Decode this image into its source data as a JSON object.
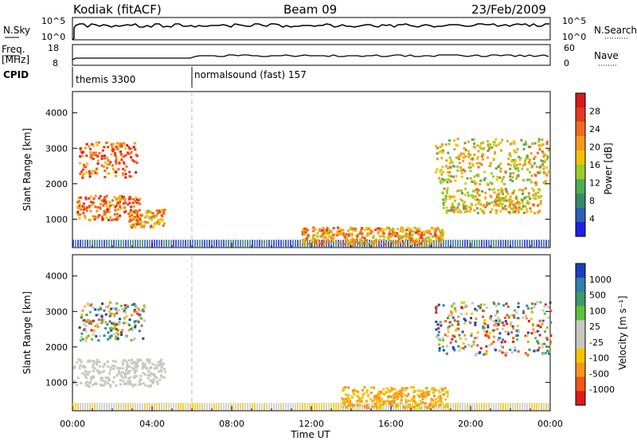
{
  "header": {
    "station": "Kodiak (fitACF)",
    "beam": "Beam 09",
    "date": "23/Feb/2009"
  },
  "top_panel": {
    "left_label": "N.Sky",
    "right_label": "N.Search",
    "left_ticks": [
      "10^5",
      "10^0"
    ],
    "right_ticks": [
      "10^5",
      "10^0"
    ]
  },
  "freq_panel": {
    "left_label_line1": "Freq.",
    "left_label_line2": "[MHz]",
    "right_label": "Nave",
    "left_ticks": [
      "18",
      "8"
    ],
    "right_ticks": [
      "60",
      "0"
    ]
  },
  "cpid_panel": {
    "label": "CPID",
    "modes": [
      {
        "name": "themis 3300",
        "start_hour": 0
      },
      {
        "name": "normalsound (fast) 157",
        "start_hour": 6
      }
    ]
  },
  "chart_data": [
    {
      "type": "heatmap",
      "panel": "power",
      "ylabel": "Slant Range [km]",
      "yticks": [
        1000,
        2000,
        3000,
        4000
      ],
      "ylim": [
        200,
        4600
      ],
      "xlim_hours": [
        0,
        24
      ],
      "colorbar": {
        "label": "Power [dB]",
        "ticks": [
          "4",
          "8",
          "12",
          "16",
          "20",
          "24",
          "28"
        ],
        "colors": [
          "#1f1fe8",
          "#2d5fb5",
          "#3a8a6a",
          "#4caf50",
          "#9ccc2a",
          "#f2c200",
          "#f59a1a",
          "#f06a1e",
          "#e8391e",
          "#d81a1a"
        ]
      },
      "regions": [
        {
          "hours": [
            0.3,
            3.2
          ],
          "range_km": [
            2200,
            3200
          ],
          "level": 0.75
        },
        {
          "hours": [
            0.2,
            3.4
          ],
          "range_km": [
            1000,
            1700
          ],
          "level": 0.8
        },
        {
          "hours": [
            2.8,
            4.6
          ],
          "range_km": [
            800,
            1300
          ],
          "level": 0.7
        },
        {
          "hours": [
            11.5,
            18.6
          ],
          "range_km": [
            300,
            800
          ],
          "level": 0.65
        },
        {
          "hours": [
            18.2,
            23.9
          ],
          "range_km": [
            2000,
            3300
          ],
          "level": 0.6
        },
        {
          "hours": [
            18.5,
            23.5
          ],
          "range_km": [
            1200,
            1900
          ],
          "level": 0.6
        }
      ]
    },
    {
      "type": "heatmap",
      "panel": "velocity",
      "ylabel": "Slant Range [km]",
      "yticks": [
        1000,
        2000,
        3000,
        4000
      ],
      "ylim": [
        200,
        4600
      ],
      "xlim_hours": [
        0,
        24
      ],
      "xticks": [
        "00:00",
        "04:00",
        "08:00",
        "12:00",
        "16:00",
        "20:00",
        "00:00"
      ],
      "xlabel": "Time UT",
      "colorbar": {
        "label": "Velocity [m s⁻¹]",
        "ticks": [
          "1000",
          "500",
          "100",
          "25",
          "-25",
          "-100",
          "-500",
          "-1000"
        ],
        "colors": [
          "#1a3fbf",
          "#2f7fb0",
          "#3a9a6a",
          "#5cc43a",
          "#c8c8c0",
          "#c8c8c0",
          "#f5c400",
          "#f5951a",
          "#f0551a",
          "#e01a1a"
        ]
      },
      "regions": [
        {
          "hours": [
            0.3,
            3.6
          ],
          "range_km": [
            2200,
            3300
          ],
          "level": "mixed"
        },
        {
          "hours": [
            0.0,
            4.6
          ],
          "range_km": [
            900,
            1700
          ],
          "level": "low"
        },
        {
          "hours": [
            13.5,
            18.8
          ],
          "range_km": [
            300,
            900
          ],
          "level": "negative"
        },
        {
          "hours": [
            18.2,
            24.0
          ],
          "range_km": [
            1800,
            3300
          ],
          "level": "mixed"
        }
      ]
    }
  ]
}
